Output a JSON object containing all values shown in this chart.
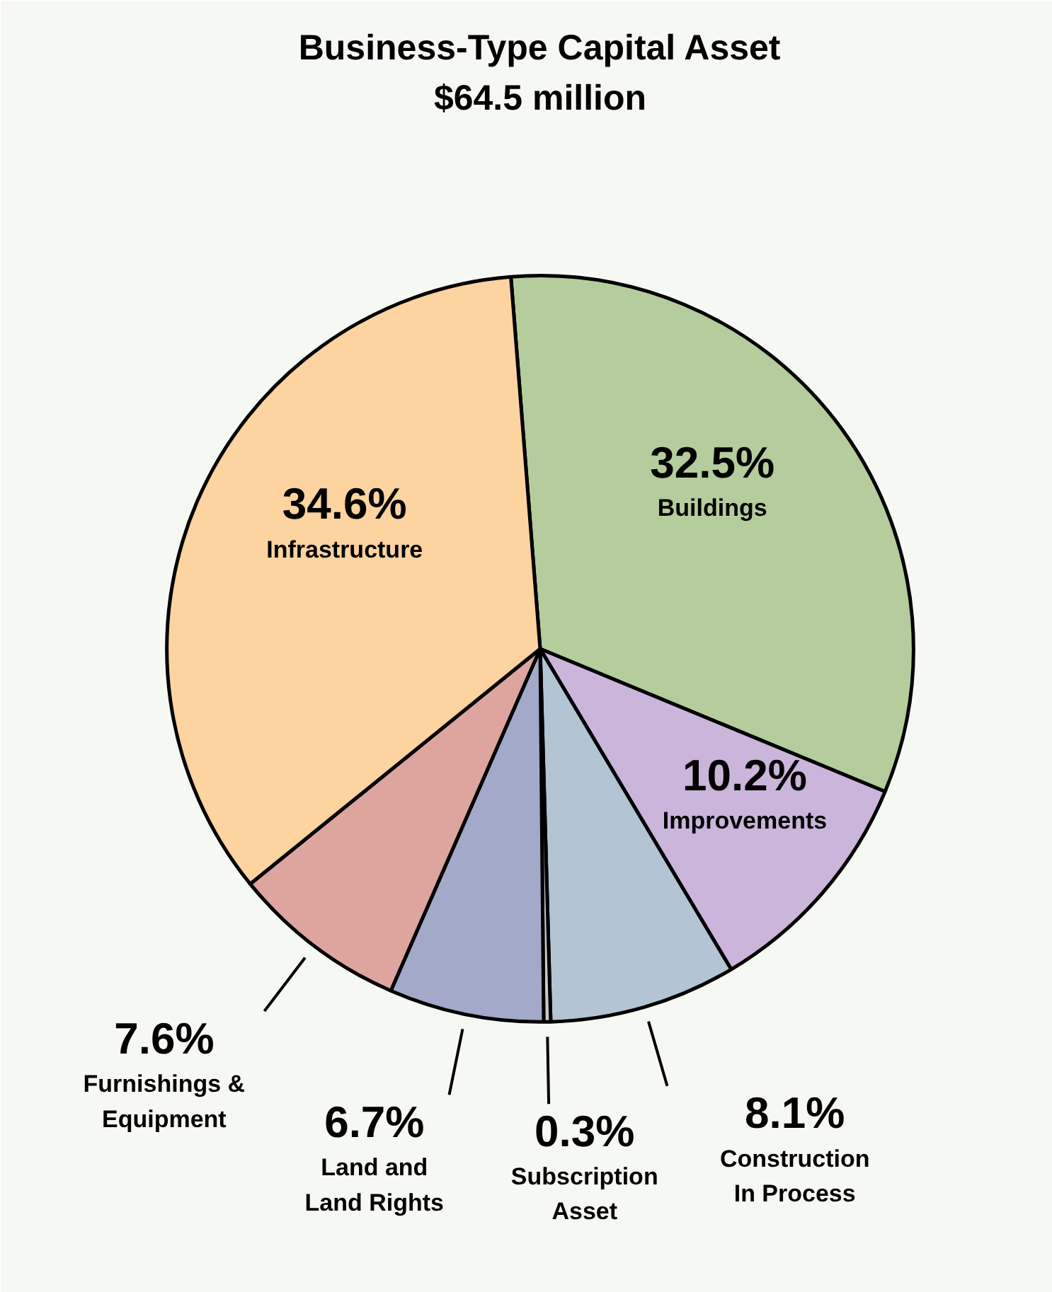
{
  "chart_data": {
    "type": "pie",
    "title": "Business-Type Capital Asset",
    "subtitle": "$64.5 million",
    "categories": [
      "Buildings",
      "Improvements",
      "Construction\nIn Process",
      "Subscription\nAsset",
      "Land and\nLand Rights",
      "Furnishings &\nEquipment",
      "Infrastructure"
    ],
    "values": [
      32.5,
      10.2,
      8.1,
      0.3,
      6.7,
      7.6,
      34.6
    ],
    "value_labels": [
      "32.5%",
      "10.2%",
      "8.1%",
      "0.3%",
      "6.7%",
      "7.6%",
      "34.6%"
    ],
    "colors": [
      "#b5cc9c",
      "#cbb5da",
      "#b3c5d3",
      "#c9c9c9",
      "#a3a9c8",
      "#dea59f",
      "#fdd3a0"
    ]
  }
}
